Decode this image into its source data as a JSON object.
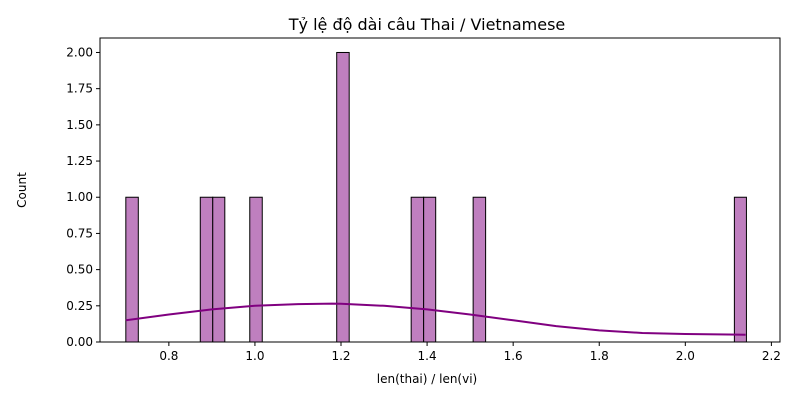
{
  "chart_data": {
    "type": "bar",
    "title": "Tỷ lệ độ dài câu Thai / Vietnamese",
    "xlabel": "len(thai) / len(vi)",
    "ylabel": "Count",
    "xlim": [
      0.64,
      2.22
    ],
    "ylim": [
      0,
      2.1
    ],
    "xticks": [
      "0.8",
      "1.0",
      "1.2",
      "1.4",
      "1.6",
      "1.8",
      "2.0",
      "2.2"
    ],
    "yticks": [
      "0.00",
      "0.25",
      "0.50",
      "0.75",
      "1.00",
      "1.25",
      "1.50",
      "1.75",
      "2.00"
    ],
    "bar_color": "#bf7fbf",
    "kde_color": "#800080",
    "bin_width": 0.0288,
    "bars": [
      {
        "x0": 0.7,
        "x1": 0.729,
        "count": 1
      },
      {
        "x0": 0.873,
        "x1": 0.902,
        "count": 1
      },
      {
        "x0": 0.902,
        "x1": 0.93,
        "count": 1
      },
      {
        "x0": 0.988,
        "x1": 1.017,
        "count": 1
      },
      {
        "x0": 1.19,
        "x1": 1.219,
        "count": 2
      },
      {
        "x0": 1.363,
        "x1": 1.392,
        "count": 1
      },
      {
        "x0": 1.392,
        "x1": 1.42,
        "count": 1
      },
      {
        "x0": 1.507,
        "x1": 1.536,
        "count": 1
      },
      {
        "x0": 2.114,
        "x1": 2.142,
        "count": 1
      }
    ],
    "kde": {
      "x": [
        0.7,
        0.8,
        0.9,
        1.0,
        1.1,
        1.18,
        1.2,
        1.3,
        1.4,
        1.5,
        1.6,
        1.7,
        1.8,
        1.9,
        2.0,
        2.1,
        2.14
      ],
      "y": [
        0.15,
        0.19,
        0.225,
        0.25,
        0.262,
        0.265,
        0.264,
        0.25,
        0.225,
        0.19,
        0.15,
        0.11,
        0.08,
        0.062,
        0.055,
        0.052,
        0.05
      ]
    }
  }
}
